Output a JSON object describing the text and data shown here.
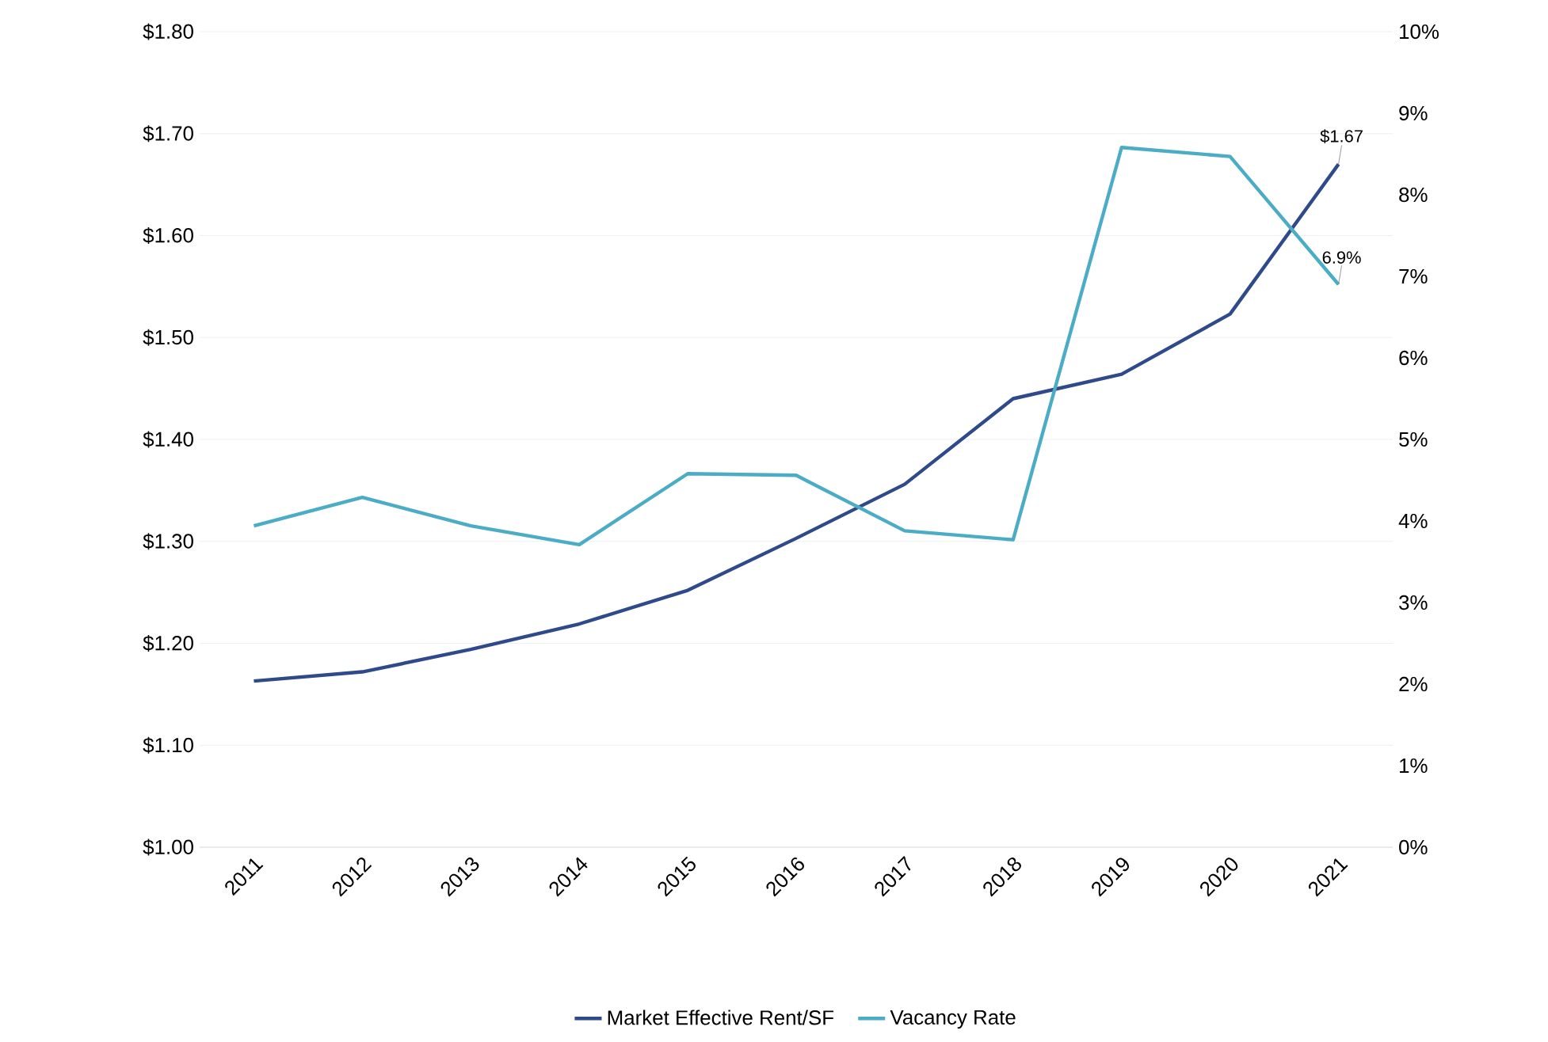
{
  "chart_data": {
    "type": "line",
    "categories": [
      "2011",
      "2012",
      "2013",
      "2014",
      "2015",
      "2016",
      "2017",
      "2018",
      "2019",
      "2020",
      "2021"
    ],
    "series": [
      {
        "name": "Market Effective Rent/SF",
        "color": "#2e4a8a",
        "values": [
          1.163,
          1.172,
          1.194,
          1.219,
          1.252,
          1.303,
          1.356,
          1.44,
          1.464,
          1.523,
          1.67
        ],
        "value_labels": [
          null,
          null,
          null,
          null,
          null,
          null,
          null,
          null,
          null,
          null,
          "$1.67"
        ]
      },
      {
        "name": "Vacancy Rate",
        "color": "#4bacc6",
        "axis": "y2",
        "values": [
          3.94,
          4.29,
          3.94,
          3.71,
          4.58,
          4.56,
          3.88,
          3.77,
          8.58,
          8.47,
          6.9
        ],
        "value_labels": [
          null,
          null,
          null,
          null,
          null,
          null,
          null,
          null,
          null,
          null,
          "6.9%"
        ]
      }
    ],
    "ylim": [
      1.0,
      1.8
    ],
    "yticks": [
      {
        "value": 1.0,
        "label": "$1.00"
      },
      {
        "value": 1.1,
        "label": "$1.10"
      },
      {
        "value": 1.2,
        "label": "$1.20"
      },
      {
        "value": 1.3,
        "label": "$1.30"
      },
      {
        "value": 1.4,
        "label": "$1.40"
      },
      {
        "value": 1.5,
        "label": "$1.50"
      },
      {
        "value": 1.6,
        "label": "$1.60"
      },
      {
        "value": 1.7,
        "label": "$1.70"
      },
      {
        "value": 1.8,
        "label": "$1.80"
      }
    ],
    "y2lim": [
      0,
      10
    ],
    "y2ticks": [
      {
        "value": 0,
        "label": "0%"
      },
      {
        "value": 1,
        "label": "1%"
      },
      {
        "value": 2,
        "label": "2%"
      },
      {
        "value": 3,
        "label": "3%"
      },
      {
        "value": 4,
        "label": "4%"
      },
      {
        "value": 5,
        "label": "5%"
      },
      {
        "value": 6,
        "label": "6%"
      },
      {
        "value": 7,
        "label": "7%"
      },
      {
        "value": 8,
        "label": "8%"
      },
      {
        "value": 9,
        "label": "9%"
      },
      {
        "value": 10,
        "label": "10%"
      }
    ],
    "grid": "y",
    "legend": "bottom",
    "marker": "none",
    "line_style": "solid"
  }
}
